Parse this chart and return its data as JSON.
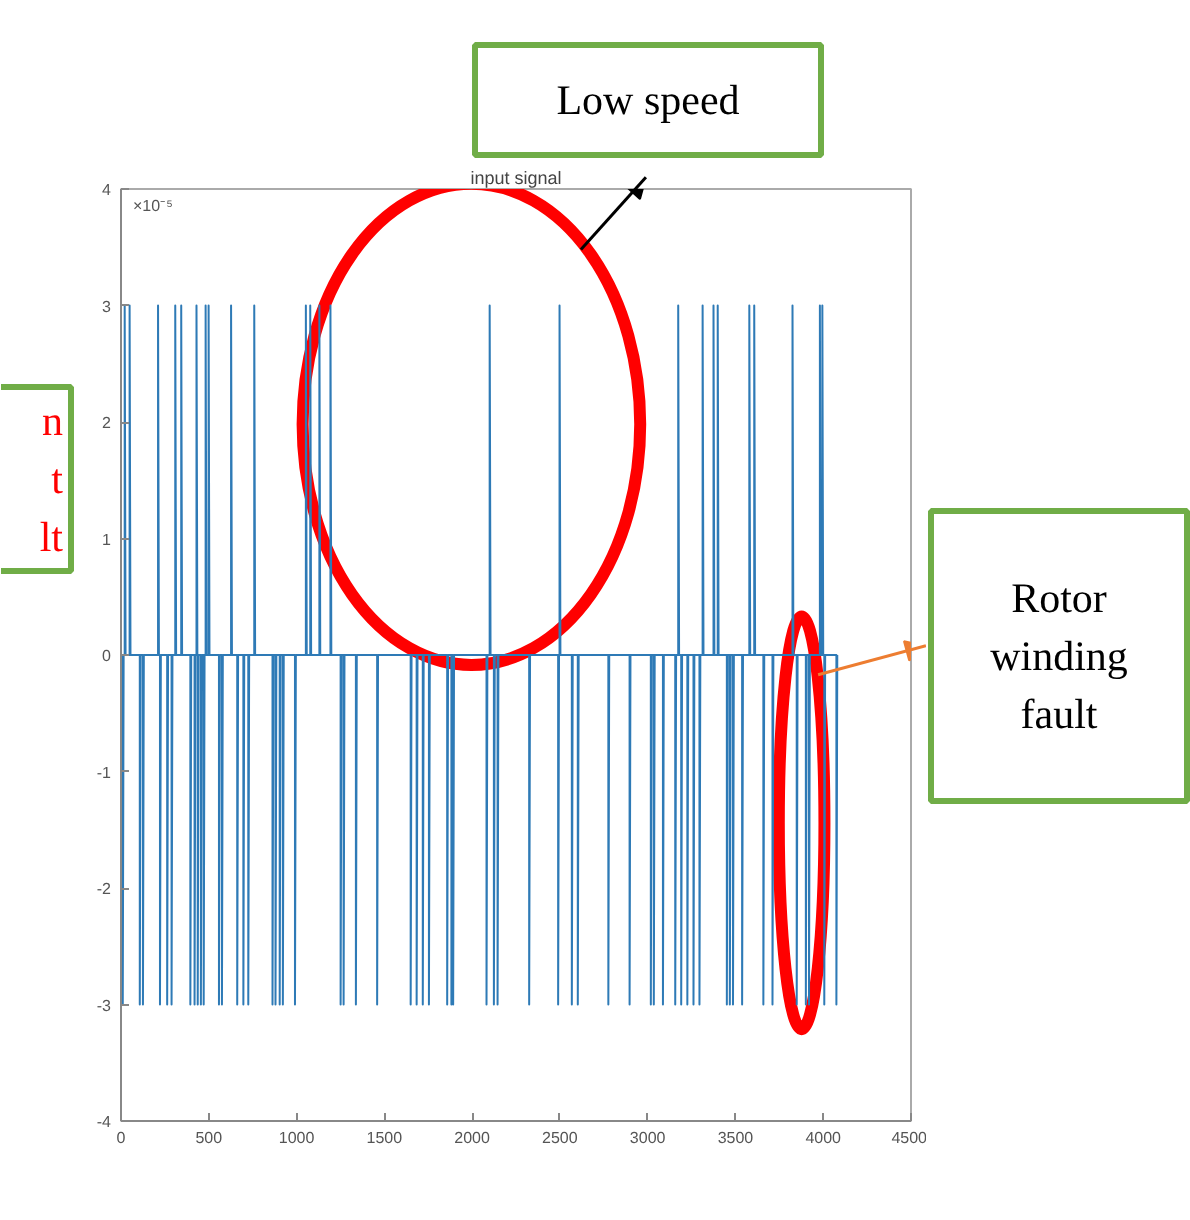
{
  "chart_data": {
    "type": "line",
    "title": "input signal",
    "x": [
      0,
      10,
      10,
      15,
      21,
      21,
      26,
      49,
      49,
      54,
      107,
      107,
      112,
      125,
      125,
      130,
      211,
      211,
      216,
      222,
      222,
      227,
      263,
      263,
      268,
      288,
      288,
      293,
      309,
      309,
      314,
      343,
      343,
      348,
      395,
      395,
      400,
      419,
      419,
      424,
      430,
      430,
      435,
      437,
      437,
      442,
      455,
      455,
      460,
      471,
      471,
      476,
      482,
      482,
      487,
      499,
      499,
      504,
      558,
      558,
      563,
      575,
      575,
      580,
      627,
      627,
      632,
      662,
      662,
      667,
      697,
      697,
      702,
      725,
      725,
      730,
      759,
      759,
      764,
      863,
      863,
      868,
      880,
      880,
      885,
      904,
      904,
      909,
      922,
      922,
      927,
      991,
      991,
      996,
      1053,
      1053,
      1058,
      1078,
      1078,
      1083,
      1130,
      1130,
      1135,
      1193,
      1193,
      1198,
      1251,
      1251,
      1256,
      1268,
      1268,
      1273,
      1338,
      1338,
      1343,
      1459,
      1459,
      1464,
      1650,
      1650,
      1655,
      1684,
      1684,
      1689,
      1719,
      1719,
      1724,
      1754,
      1754,
      1759,
      1858,
      1858,
      1863,
      1882,
      1882,
      1887,
      1892,
      1892,
      1897,
      2082,
      2082,
      2087,
      2100,
      2100,
      2105,
      2124,
      2124,
      2129,
      2145,
      2145,
      2150,
      2325,
      2325,
      2330,
      2490,
      2490,
      2495,
      2498,
      2498,
      2503,
      2568,
      2568,
      2573,
      2602,
      2602,
      2607,
      2776,
      2776,
      2781,
      2897,
      2897,
      2902,
      3018,
      3018,
      3023,
      3035,
      3035,
      3040,
      3087,
      3087,
      3092,
      3157,
      3157,
      3162,
      3174,
      3174,
      3179,
      3191,
      3191,
      3196,
      3226,
      3226,
      3231,
      3261,
      3261,
      3266,
      3295,
      3295,
      3300,
      3313,
      3313,
      3318,
      3375,
      3375,
      3380,
      3399,
      3399,
      3404,
      3451,
      3451,
      3456,
      3468,
      3468,
      3473,
      3486,
      3486,
      3491,
      3538,
      3538,
      3543,
      3579,
      3579,
      3584,
      3607,
      3607,
      3612,
      3659,
      3659,
      3664,
      3711,
      3711,
      3716,
      3825,
      3825,
      3830,
      3849,
      3849,
      3854,
      3901,
      3901,
      3906,
      3919,
      3919,
      3924,
      3981,
      3981,
      3986,
      3995,
      3995,
      4000,
      4006,
      4006,
      4011,
      4075,
      4075,
      4080
    ],
    "series": [
      {
        "color": "#2e7ab6",
        "values": [
          0,
          0,
          -3,
          0,
          0,
          3,
          0,
          0,
          3,
          0,
          0,
          -3,
          0,
          0,
          -3,
          0,
          0,
          3,
          0,
          0,
          -3,
          0,
          0,
          -3,
          0,
          0,
          -3,
          0,
          0,
          3,
          0,
          0,
          3,
          0,
          0,
          -3,
          0,
          0,
          -3,
          0,
          0,
          3,
          0,
          0,
          -3,
          0,
          0,
          -3,
          0,
          0,
          -3,
          0,
          0,
          3,
          0,
          0,
          3,
          0,
          0,
          -3,
          0,
          0,
          -3,
          0,
          0,
          3,
          0,
          0,
          -3,
          0,
          0,
          -3,
          0,
          0,
          -3,
          0,
          0,
          3,
          0,
          0,
          -3,
          0,
          0,
          -3,
          0,
          0,
          -3,
          0,
          0,
          -3,
          0,
          0,
          -3,
          0,
          0,
          3,
          0,
          0,
          3,
          0,
          0,
          3,
          0,
          0,
          3,
          0,
          0,
          -3,
          0,
          0,
          -3,
          0,
          0,
          -3,
          0,
          0,
          -3,
          0,
          0,
          -3,
          0,
          0,
          -3,
          0,
          0,
          -3,
          0,
          0,
          -3,
          0,
          0,
          -3,
          0,
          0,
          -3,
          0,
          0,
          -3,
          0,
          0,
          -3,
          0,
          0,
          3,
          0,
          0,
          -3,
          0,
          0,
          -3,
          0,
          0,
          -3,
          0,
          0,
          -3,
          0,
          0,
          3,
          0,
          0,
          -3,
          0,
          0,
          -3,
          0,
          0,
          -3,
          0,
          0,
          -3,
          0,
          0,
          -3,
          0,
          0,
          -3,
          0,
          0,
          -3,
          0,
          0,
          -3,
          0,
          0,
          3,
          0,
          0,
          -3,
          0,
          0,
          -3,
          0,
          0,
          -3,
          0,
          0,
          -3,
          0,
          0,
          3,
          0,
          0,
          3,
          0,
          0,
          3,
          0,
          0,
          -3,
          0,
          0,
          -3,
          0,
          0,
          -3,
          0,
          0,
          -3,
          0,
          0,
          3,
          0,
          0,
          3,
          0,
          0,
          -3,
          0,
          0,
          -3,
          0,
          0,
          3,
          0,
          0,
          -3,
          0,
          0,
          -3,
          0,
          0,
          -3,
          0,
          0,
          3,
          0,
          0,
          3,
          0,
          0,
          -3,
          0,
          0,
          -3,
          0
        ]
      }
    ],
    "xlim": [
      0,
      4500
    ],
    "xticks": [
      0,
      500,
      1000,
      1500,
      2000,
      2500,
      3000,
      3500,
      4000,
      4500
    ],
    "ylim": [
      -4,
      4
    ],
    "yticks": [
      -4,
      -3,
      -2,
      -1,
      0,
      1,
      2,
      3,
      4
    ],
    "annotations": [
      "×10⁻⁵",
      "Low speed",
      "Rotor\nwinding\nfault",
      "n\nt\nlt"
    ]
  }
}
